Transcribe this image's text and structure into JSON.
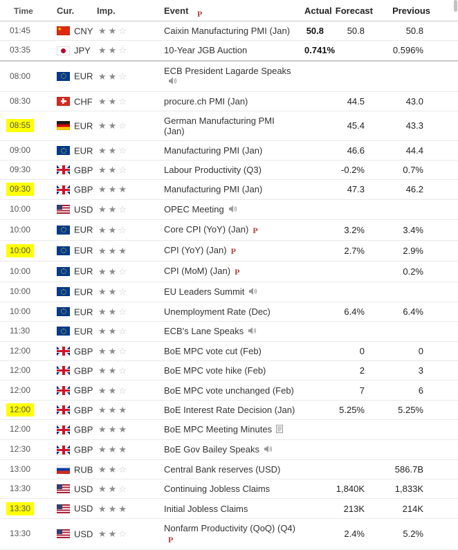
{
  "header": {
    "columns": [
      "Time",
      "Cur.",
      "Imp.",
      "Event",
      "Actual",
      "Forecast",
      "Previous"
    ],
    "stray_preliminary": "P"
  },
  "colors": {
    "highlight": "#ffff00",
    "star_filled": "#8b8b8b",
    "star_empty": "#c6c6c6",
    "preliminary_red": "#b5413c",
    "icon_gray": "#999999"
  },
  "rows": [
    {
      "time": "01:45",
      "flag": "cn",
      "currency": "CNY",
      "importance": 2,
      "event": "Caixin Manufacturing PMI (Jan)",
      "actual": "50.8",
      "actual_bold": true,
      "forecast": "50.8",
      "previous": "50.8"
    },
    {
      "time": "03:35",
      "flag": "jp",
      "currency": "JPY",
      "importance": 2,
      "event": "10-Year JGB Auction",
      "actual": "0.741%",
      "actual_bold": true,
      "previous": "0.596%"
    },
    {
      "time": "08:00",
      "flag": "eu",
      "currency": "EUR",
      "importance": 2,
      "event": "ECB President Lagarde Speaks",
      "icons": [
        "speaker"
      ],
      "wrap_icons": true,
      "day_break": true
    },
    {
      "time": "08:30",
      "flag": "ch",
      "currency": "CHF",
      "importance": 2,
      "event": "procure.ch PMI (Jan)",
      "forecast": "44.5",
      "previous": "43.0"
    },
    {
      "time": "08:55",
      "highlight": true,
      "flag": "de",
      "currency": "EUR",
      "importance": 2,
      "event": "German Manufacturing PMI\n(Jan)",
      "forecast": "45.4",
      "previous": "43.3"
    },
    {
      "time": "09:00",
      "flag": "eu",
      "currency": "EUR",
      "importance": 2,
      "event": "Manufacturing PMI (Jan)",
      "forecast": "46.6",
      "previous": "44.4"
    },
    {
      "time": "09:30",
      "flag": "gb",
      "currency": "GBP",
      "importance": 2,
      "event": "Labour Productivity (Q3)",
      "forecast": "-0.2%",
      "previous": "0.7%"
    },
    {
      "time": "09:30",
      "highlight": true,
      "flag": "gb",
      "currency": "GBP",
      "importance": 3,
      "event": "Manufacturing PMI (Jan)",
      "forecast": "47.3",
      "previous": "46.2"
    },
    {
      "time": "10:00",
      "flag": "us",
      "currency": "USD",
      "importance": 2,
      "event": "OPEC Meeting",
      "icons": [
        "speaker"
      ]
    },
    {
      "time": "10:00",
      "flag": "eu",
      "currency": "EUR",
      "importance": 2,
      "event": "Core CPI (YoY) (Jan)",
      "icons": [
        "preliminary"
      ],
      "forecast": "3.2%",
      "previous": "3.4%"
    },
    {
      "time": "10:00",
      "highlight": true,
      "flag": "eu",
      "currency": "EUR",
      "importance": 3,
      "event": "CPI (YoY) (Jan)",
      "icons": [
        "preliminary"
      ],
      "forecast": "2.7%",
      "previous": "2.9%"
    },
    {
      "time": "10:00",
      "flag": "eu",
      "currency": "EUR",
      "importance": 2,
      "event": "CPI (MoM) (Jan)",
      "icons": [
        "preliminary"
      ],
      "previous": "0.2%"
    },
    {
      "time": "10:00",
      "flag": "eu",
      "currency": "EUR",
      "importance": 2,
      "event": "EU Leaders Summit",
      "icons": [
        "speaker"
      ]
    },
    {
      "time": "10:00",
      "flag": "eu",
      "currency": "EUR",
      "importance": 2,
      "event": "Unemployment Rate (Dec)",
      "forecast": "6.4%",
      "previous": "6.4%"
    },
    {
      "time": "11:30",
      "flag": "eu",
      "currency": "EUR",
      "importance": 2,
      "event": "ECB's Lane Speaks",
      "icons": [
        "speaker"
      ]
    },
    {
      "time": "12:00",
      "flag": "gb",
      "currency": "GBP",
      "importance": 2,
      "event": "BoE MPC vote cut (Feb)",
      "forecast": "0",
      "previous": "0"
    },
    {
      "time": "12:00",
      "flag": "gb",
      "currency": "GBP",
      "importance": 2,
      "event": "BoE MPC vote hike (Feb)",
      "forecast": "2",
      "previous": "3"
    },
    {
      "time": "12:00",
      "flag": "gb",
      "currency": "GBP",
      "importance": 2,
      "event": "BoE MPC vote unchanged (Feb)",
      "forecast": "7",
      "previous": "6"
    },
    {
      "time": "12:00",
      "highlight": true,
      "flag": "gb",
      "currency": "GBP",
      "importance": 3,
      "event": "BoE Interest Rate Decision (Jan)",
      "forecast": "5.25%",
      "previous": "5.25%"
    },
    {
      "time": "12:00",
      "flag": "gb",
      "currency": "GBP",
      "importance": 3,
      "event": "BoE MPC Meeting Minutes",
      "icons": [
        "report"
      ]
    },
    {
      "time": "12:30",
      "flag": "gb",
      "currency": "GBP",
      "importance": 3,
      "event": "BoE Gov Bailey Speaks",
      "icons": [
        "speaker"
      ]
    },
    {
      "time": "13:00",
      "flag": "ru",
      "currency": "RUB",
      "importance": 2,
      "event": "Central Bank reserves (USD)",
      "previous": "586.7B"
    },
    {
      "time": "13:30",
      "flag": "us",
      "currency": "USD",
      "importance": 2,
      "event": "Continuing Jobless Claims",
      "forecast": "1,840K",
      "previous": "1,833K"
    },
    {
      "time": "13:30",
      "highlight": true,
      "flag": "us",
      "currency": "USD",
      "importance": 3,
      "event": "Initial Jobless Claims",
      "forecast": "213K",
      "previous": "214K"
    },
    {
      "time": "13:30",
      "flag": "us",
      "currency": "USD",
      "importance": 2,
      "event": "Nonfarm Productivity (QoQ) (Q4)",
      "icons": [
        "preliminary"
      ],
      "wrap_icons": true,
      "forecast": "2.4%",
      "previous": "5.2%"
    }
  ]
}
